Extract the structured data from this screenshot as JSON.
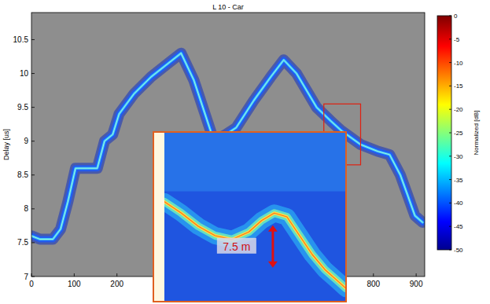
{
  "chart_data": [
    {
      "type": "line",
      "title": "L 10 - Car",
      "ylabel": "Delay [us]",
      "x": [
        0,
        20,
        50,
        68,
        85,
        103,
        130,
        154,
        171,
        190,
        205,
        240,
        280,
        320,
        350,
        380,
        427,
        455,
        479,
        520,
        560,
        590,
        620,
        667,
        700,
        726,
        770,
        810,
        838,
        863,
        880,
        897,
        915
      ],
      "values": [
        7.6,
        7.55,
        7.55,
        7.7,
        8.1,
        8.6,
        8.6,
        8.6,
        9.0,
        9.1,
        9.4,
        9.7,
        9.95,
        10.15,
        10.3,
        9.9,
        9.0,
        9.1,
        9.2,
        9.6,
        9.95,
        10.2,
        10.0,
        9.5,
        9.3,
        9.15,
        8.95,
        8.85,
        8.8,
        8.5,
        8.2,
        7.9,
        7.8
      ],
      "color": "#3cc8ff",
      "xlim": [
        0,
        920
      ],
      "ylim": [
        7,
        10.9
      ],
      "xticks": [
        0,
        100,
        200,
        800,
        900
      ],
      "yticks": [
        7,
        7.5,
        8,
        8.5,
        9,
        9.5,
        10,
        10.5
      ],
      "colorbar": {
        "range": [
          -50,
          0
        ],
        "ticks": [
          0,
          -5,
          -10,
          -15,
          -20,
          -25,
          -30,
          -35,
          -40,
          -45,
          -50
        ],
        "label": "Normalized [dB]"
      }
    },
    {
      "type": "line",
      "annotation": "7.5 m",
      "x": [
        684,
        692,
        700,
        708,
        716,
        724,
        730,
        736,
        742,
        748,
        754,
        760,
        766,
        770
      ],
      "values": [
        9.18,
        9.12,
        9.05,
        9.0,
        8.98,
        9.02,
        9.08,
        9.12,
        9.1,
        9.0,
        8.9,
        8.82,
        8.76,
        8.72
      ],
      "color": "#ffe040",
      "xlim": [
        684,
        770
      ],
      "ylim": [
        8.65,
        9.55
      ],
      "tick_labels": false
    }
  ]
}
